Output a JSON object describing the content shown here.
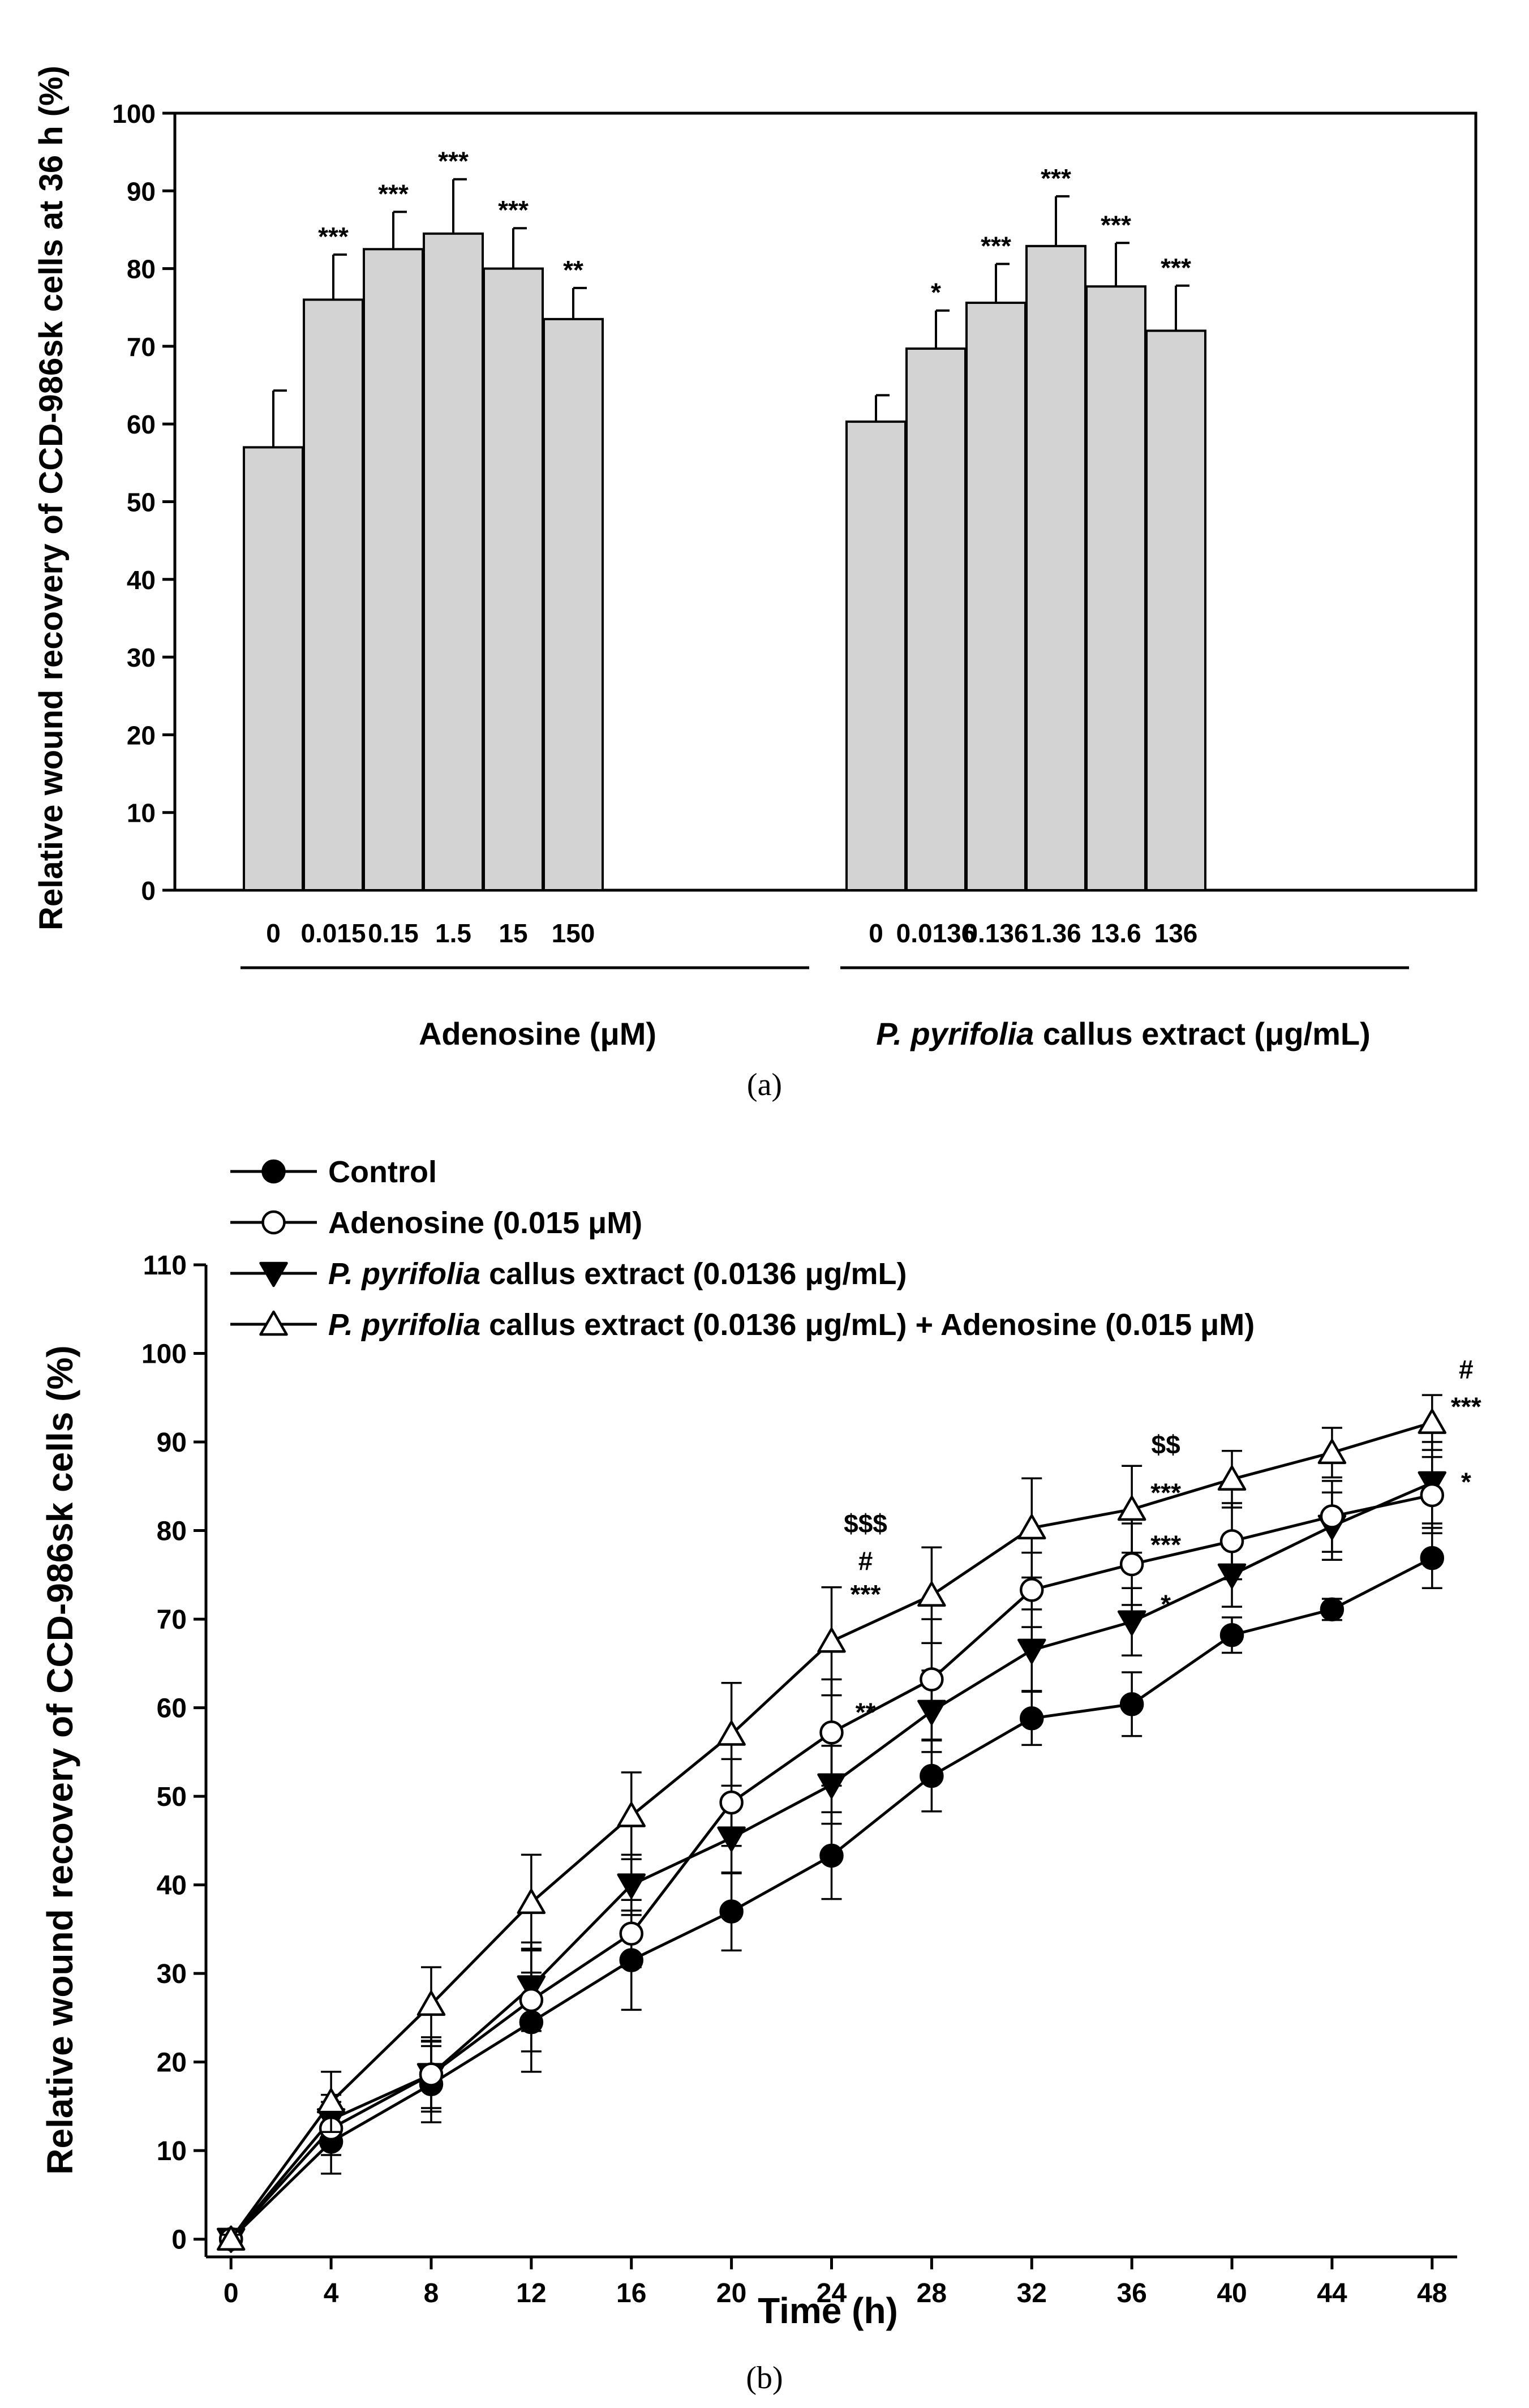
{
  "chart_data": [
    {
      "id": "a",
      "type": "bar",
      "panel_label": "(a)",
      "ylabel": "Relative wound recovery of CCD-986sk cells at 36 h (%)",
      "ylim": [
        0,
        100
      ],
      "yticks": [
        0,
        10,
        20,
        30,
        40,
        50,
        60,
        70,
        80,
        90,
        100
      ],
      "bar_color": "#d3d3d3",
      "groups": [
        {
          "label_italic": "",
          "label_rest": "Adenosine (μM)",
          "categories": [
            "0",
            "0.015",
            "0.15",
            "1.5",
            "15",
            "150"
          ],
          "values": [
            57,
            76,
            82.5,
            84.5,
            80,
            73.5
          ],
          "errors": [
            7.3,
            5.8,
            4.8,
            7,
            5.2,
            4
          ],
          "significance": [
            "",
            "***",
            "***",
            "***",
            "***",
            "**"
          ]
        },
        {
          "label_italic": "P. pyrifolia",
          "label_rest": " callus extract (μg/mL)",
          "categories": [
            "0",
            "0.0136",
            "0.136",
            "1.36",
            "13.6",
            "136"
          ],
          "values": [
            60.3,
            69.7,
            75.6,
            82.9,
            77.7,
            72
          ],
          "errors": [
            3.4,
            4.9,
            5,
            6.4,
            5.6,
            5.8
          ],
          "significance": [
            "",
            "*",
            "***",
            "***",
            "***",
            "***"
          ]
        }
      ]
    },
    {
      "id": "b",
      "type": "line",
      "panel_label": "(b)",
      "xlabel": "Time (h)",
      "ylabel": "Relative wound recovery of CCD-986sk cells (%)",
      "x": [
        0,
        4,
        8,
        12,
        16,
        20,
        24,
        28,
        32,
        36,
        40,
        44,
        48
      ],
      "xlim": [
        -1,
        49
      ],
      "ylim": [
        -2,
        110
      ],
      "yticks": [
        0,
        10,
        20,
        30,
        40,
        50,
        60,
        70,
        80,
        90,
        100,
        110
      ],
      "series": [
        {
          "name": "Control",
          "name_italic": "",
          "name_rest": "Control",
          "marker": "circle-filled",
          "values": [
            0,
            11,
            17.5,
            24.5,
            31.5,
            37,
            43.3,
            52.3,
            58.8,
            60.4,
            68.2,
            71.1,
            76.9
          ],
          "errors": [
            0.5,
            3.6,
            4.3,
            5.6,
            5.6,
            4.4,
            4.9,
            4,
            3,
            3.6,
            2,
            1.2,
            3.4
          ]
        },
        {
          "name": "Adenosine (0.015 μM)",
          "name_italic": "",
          "name_rest": "Adenosine (0.015 μM)",
          "marker": "circle-open",
          "values": [
            0,
            12.5,
            18.6,
            27,
            34.5,
            49.3,
            57.2,
            63.2,
            73.3,
            76.2,
            78.8,
            81.6,
            84
          ],
          "errors": [
            0.5,
            3,
            4.2,
            5.8,
            3.8,
            4.9,
            6,
            6.8,
            4.2,
            4.6,
            4.3,
            4,
            4.3
          ]
        },
        {
          "name": "P. pyrifolia callus extract (0.0136 μg/mL)",
          "name_italic": "P. pyrifolia",
          "name_rest": " callus extract (0.0136 μg/mL)",
          "marker": "triangle-down-filled",
          "values": [
            0,
            13.5,
            18.6,
            28.5,
            40,
            45.3,
            51.3,
            59.6,
            66.5,
            69.7,
            75,
            80.5,
            85.4
          ],
          "errors": [
            0.5,
            2.8,
            3.8,
            5,
            3.4,
            4,
            4.4,
            4.6,
            4.6,
            3.8,
            3.6,
            3.8,
            4.6
          ]
        },
        {
          "name": "P. pyrifolia callus extract (0.0136 μg/mL) + Adenosine (0.015 μM)",
          "name_italic": "P. pyrifolia",
          "name_rest": " callus extract (0.0136 μg/mL) + Adenosine (0.015 μM)",
          "marker": "triangle-up-open",
          "values": [
            0,
            15.5,
            26.5,
            38,
            47.8,
            57,
            67.5,
            72.7,
            80.3,
            82.4,
            85.8,
            88.8,
            92.2
          ],
          "errors": [
            0.5,
            3.4,
            4.2,
            5.4,
            4.9,
            5.8,
            6.1,
            5.4,
            5.6,
            4.9,
            3.2,
            2.8,
            3.1
          ]
        }
      ],
      "annotations": [
        {
          "x": 24,
          "y": 59.5,
          "text": "**"
        },
        {
          "x": 24,
          "y": 72.8,
          "text": "***"
        },
        {
          "x": 24,
          "y": 76.6,
          "text": "#"
        },
        {
          "x": 24,
          "y": 80.8,
          "text": "$$$"
        },
        {
          "x": 36,
          "y": 71.7,
          "text": "*"
        },
        {
          "x": 36,
          "y": 78.4,
          "text": "***"
        },
        {
          "x": 36,
          "y": 84.3,
          "text": "***"
        },
        {
          "x": 36,
          "y": 89.7,
          "text": "$$"
        },
        {
          "x": 48,
          "y": 85.5,
          "text": "*"
        },
        {
          "x": 48,
          "y": 94,
          "text": "***"
        },
        {
          "x": 48,
          "y": 98.2,
          "text": "#"
        }
      ]
    }
  ]
}
